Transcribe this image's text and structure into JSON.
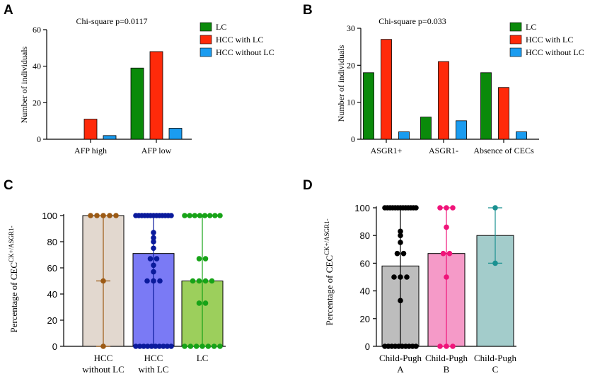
{
  "chart_data": [
    {
      "panel": "A",
      "type": "bar",
      "title": "Chi-square p=0.0117",
      "ylabel": "Number of individuals",
      "xlabel": "",
      "ylim": [
        0,
        60
      ],
      "yticks": [
        0,
        20,
        40,
        60
      ],
      "categories": [
        "AFP high",
        "AFP low"
      ],
      "series": [
        {
          "name": "LC",
          "color": "#0a8a0a",
          "values": [
            0,
            39
          ]
        },
        {
          "name": "HCC with LC",
          "color": "#ff2a0a",
          "values": [
            11,
            48
          ]
        },
        {
          "name": "HCC without LC",
          "color": "#1a9cf0",
          "values": [
            2,
            6
          ]
        }
      ],
      "legend": "right"
    },
    {
      "panel": "B",
      "type": "bar",
      "title": "Chi-square p=0.033",
      "ylabel": "Number of individuals",
      "xlabel": "",
      "ylim": [
        0,
        30
      ],
      "yticks": [
        0,
        10,
        20,
        30
      ],
      "categories": [
        "ASGR1+",
        "ASGR1-",
        "Absence of CECs"
      ],
      "series": [
        {
          "name": "LC",
          "color": "#0a8a0a",
          "values": [
            18,
            6,
            18
          ]
        },
        {
          "name": "HCC with LC",
          "color": "#ff2a0a",
          "values": [
            27,
            21,
            14
          ]
        },
        {
          "name": "HCC without LC",
          "color": "#1a9cf0",
          "values": [
            2,
            5,
            2
          ]
        }
      ],
      "legend": "right"
    },
    {
      "panel": "C",
      "type": "bar",
      "ylabel_main": "Percentage of CEC",
      "ylabel_sup": "CK+/ASGR1-",
      "ylim": [
        0,
        100
      ],
      "yticks": [
        0,
        20,
        40,
        60,
        80,
        100
      ],
      "groups": [
        {
          "label_lines": [
            "HCC",
            "without LC"
          ],
          "mean": 100,
          "err_low": 0,
          "err_high": 100,
          "median_mark": 50,
          "fill": "#e2d8cf",
          "color": "#9c5a14",
          "points": [
            100,
            100,
            100,
            100,
            100,
            50,
            0
          ]
        },
        {
          "label_lines": [
            "HCC",
            "with LC"
          ],
          "mean": 71,
          "err_low": 0,
          "err_high": 100,
          "fill": "#7a7af5",
          "color": "#0a1a9c",
          "points": [
            100,
            100,
            100,
            100,
            100,
            100,
            100,
            100,
            100,
            100,
            100,
            100,
            100,
            87,
            83,
            80,
            75,
            67,
            67,
            62,
            57,
            50,
            50,
            50,
            0,
            0,
            0,
            0,
            0,
            0,
            0,
            0,
            0,
            0
          ]
        },
        {
          "label_lines": [
            "LC"
          ],
          "mean": 50,
          "err_low": 0,
          "err_high": 100,
          "fill": "#9ccf5c",
          "color": "#17a317",
          "points": [
            100,
            100,
            100,
            100,
            100,
            100,
            100,
            100,
            67,
            67,
            50,
            50,
            50,
            50,
            33,
            33,
            0,
            0,
            0,
            0,
            0,
            0,
            0
          ]
        }
      ]
    },
    {
      "panel": "D",
      "type": "bar",
      "ylabel_main": "Percentage of CEC",
      "ylabel_sup": "CK+/ASGR1-",
      "ylim": [
        0,
        100
      ],
      "yticks": [
        0,
        20,
        40,
        60,
        80,
        100
      ],
      "groups": [
        {
          "label_lines": [
            "Child-Pugh",
            "A"
          ],
          "mean": 58,
          "err_low": 0,
          "err_high": 100,
          "fill": "#bdbdbd",
          "color": "#000000",
          "points": [
            100,
            100,
            100,
            100,
            100,
            100,
            100,
            100,
            100,
            100,
            100,
            100,
            100,
            83,
            80,
            75,
            67,
            67,
            50,
            50,
            50,
            33,
            0,
            0,
            0,
            0,
            0,
            0,
            0,
            0,
            0,
            0
          ]
        },
        {
          "label_lines": [
            "Child-Pugh",
            "B"
          ],
          "mean": 67,
          "err_low": 0,
          "err_high": 100,
          "fill": "#f59ac8",
          "color": "#f0147a",
          "points": [
            100,
            100,
            100,
            86,
            67,
            67,
            50,
            0,
            0,
            0
          ]
        },
        {
          "label_lines": [
            "Child-Pugh",
            "C"
          ],
          "mean": 80,
          "err_low": 60,
          "err_high": 100,
          "fill": "#a3cccb",
          "color": "#1a9191",
          "points": [
            100,
            60
          ]
        }
      ]
    }
  ]
}
